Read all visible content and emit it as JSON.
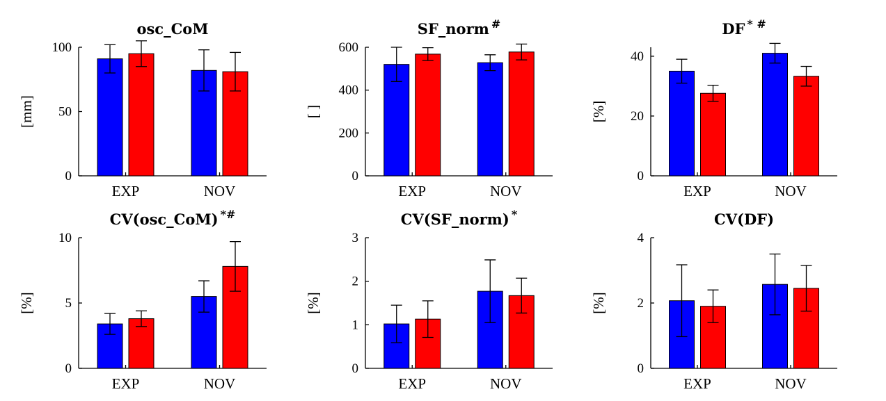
{
  "chart_data": [
    {
      "type": "bar",
      "title": "osc_CoM",
      "title_marks": "",
      "ylabel": "[mm]",
      "categories": [
        "EXP",
        "NOV"
      ],
      "ylim": [
        0,
        100
      ],
      "yticks": [
        0,
        50,
        100
      ],
      "series": [
        {
          "name": "blue",
          "color": "#0000ff",
          "values": [
            91,
            82
          ],
          "errors": [
            11,
            16
          ]
        },
        {
          "name": "red",
          "color": "#ff0000",
          "values": [
            95,
            81
          ],
          "errors": [
            10,
            15
          ]
        }
      ]
    },
    {
      "type": "bar",
      "title": "SF_norm",
      "title_marks": "#",
      "ylabel": "[ ]",
      "categories": [
        "EXP",
        "NOV"
      ],
      "ylim": [
        0,
        600
      ],
      "yticks": [
        0,
        200,
        400,
        600
      ],
      "series": [
        {
          "name": "blue",
          "color": "#0000ff",
          "values": [
            520,
            528
          ],
          "errors": [
            80,
            37
          ]
        },
        {
          "name": "red",
          "color": "#ff0000",
          "values": [
            568,
            578
          ],
          "errors": [
            30,
            37
          ]
        }
      ]
    },
    {
      "type": "bar",
      "title": "DF",
      "title_marks": "* #",
      "ylabel": "[%]",
      "categories": [
        "EXP",
        "NOV"
      ],
      "ylim": [
        0,
        43
      ],
      "yticks": [
        0,
        20,
        40
      ],
      "series": [
        {
          "name": "blue",
          "color": "#0000ff",
          "values": [
            35,
            41
          ],
          "errors": [
            4,
            3.3
          ]
        },
        {
          "name": "red",
          "color": "#ff0000",
          "values": [
            27.6,
            33.3
          ],
          "errors": [
            2.7,
            3.3
          ]
        }
      ]
    },
    {
      "type": "bar",
      "title": "CV(osc_CoM)",
      "title_marks": "*#",
      "ylabel": "[%]",
      "categories": [
        "EXP",
        "NOV"
      ],
      "ylim": [
        0,
        10
      ],
      "yticks": [
        0,
        5,
        10
      ],
      "series": [
        {
          "name": "blue",
          "color": "#0000ff",
          "values": [
            3.4,
            5.5
          ],
          "errors": [
            0.8,
            1.2
          ]
        },
        {
          "name": "red",
          "color": "#ff0000",
          "values": [
            3.8,
            7.8
          ],
          "errors": [
            0.6,
            1.9
          ]
        }
      ]
    },
    {
      "type": "bar",
      "title": "CV(SF_norm)",
      "title_marks": "*",
      "ylabel": "[%]",
      "categories": [
        "EXP",
        "NOV"
      ],
      "ylim": [
        0,
        3
      ],
      "yticks": [
        0,
        1,
        2,
        3
      ],
      "series": [
        {
          "name": "blue",
          "color": "#0000ff",
          "values": [
            1.02,
            1.77
          ],
          "errors": [
            0.43,
            0.72
          ]
        },
        {
          "name": "red",
          "color": "#ff0000",
          "values": [
            1.13,
            1.67
          ],
          "errors": [
            0.42,
            0.4
          ]
        }
      ]
    },
    {
      "type": "bar",
      "title": "CV(DF)",
      "title_marks": "",
      "ylabel": "[%]",
      "categories": [
        "EXP",
        "NOV"
      ],
      "ylim": [
        0,
        4
      ],
      "yticks": [
        0,
        2,
        4
      ],
      "series": [
        {
          "name": "blue",
          "color": "#0000ff",
          "values": [
            2.07,
            2.57
          ],
          "errors": [
            1.1,
            0.93
          ]
        },
        {
          "name": "red",
          "color": "#ff0000",
          "values": [
            1.9,
            2.45
          ],
          "errors": [
            0.5,
            0.7
          ]
        }
      ]
    }
  ]
}
